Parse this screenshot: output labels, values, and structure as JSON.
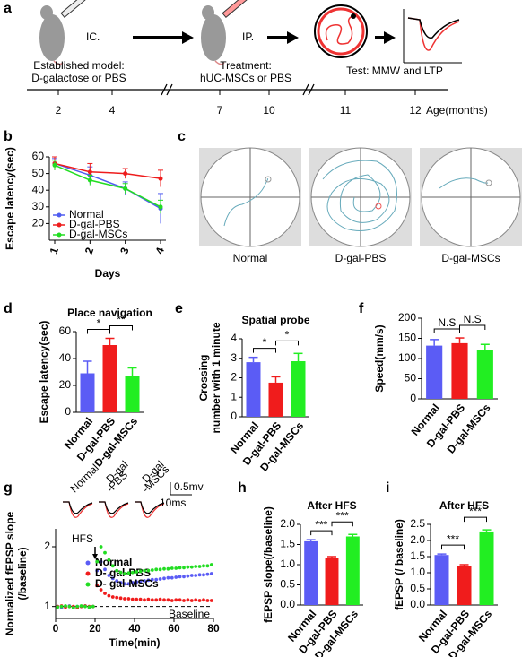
{
  "panel_a": {
    "panel_label": "a",
    "step1_label": "IC.",
    "step2_label": "IP.",
    "step1_text": [
      "Established model:",
      "D-galactose or PBS"
    ],
    "step2_text": [
      "Treatment:",
      "hUC-MSCs or PBS"
    ],
    "step3_text": "Test: MMW and LTP",
    "timeline_ticks": [
      2,
      4,
      7,
      10,
      11,
      12
    ],
    "timeline_unit": "Age(months)"
  },
  "panel_c": {
    "panel_label": "c",
    "labels": [
      "Normal",
      "D-gal-PBS",
      "D-gal-MSCs"
    ]
  },
  "chart_data": [
    {
      "type": "line",
      "panel_label": "b",
      "ylabel": "Escape latency(sec)",
      "xlabel": "Days",
      "categories": [
        "1",
        "2",
        "3",
        "4"
      ],
      "ylim": [
        10,
        60
      ],
      "yticks": [
        20,
        30,
        40,
        50,
        60
      ],
      "series": [
        {
          "name": "Normal",
          "color": "#4f5cf0",
          "values": [
            56,
            49,
            41,
            29
          ],
          "errors": [
            3,
            5,
            4,
            9
          ]
        },
        {
          "name": "D-gal-PBS",
          "color": "#ee1c1c",
          "values": [
            56,
            51,
            50,
            47
          ],
          "errors": [
            4,
            5,
            3,
            5
          ]
        },
        {
          "name": "D-gal-MSCs",
          "color": "#22dd22",
          "values": [
            55,
            46,
            41,
            30
          ],
          "errors": [
            3,
            3,
            3,
            4
          ]
        }
      ]
    },
    {
      "type": "bar",
      "panel_label": "d",
      "title": "Place navigation",
      "ylabel": "Escape latency(sec)",
      "categories": [
        "Normal",
        "D-gal-PBS",
        "D-gal-MSCs"
      ],
      "values": [
        29,
        50,
        27
      ],
      "errors": [
        9,
        5,
        6
      ],
      "colors": [
        "#5b5cf5",
        "#f01c1c",
        "#22ee22"
      ],
      "ylim": [
        0,
        60
      ],
      "yticks": [
        0,
        20,
        40,
        60
      ],
      "annotations": [
        "*",
        "**"
      ]
    },
    {
      "type": "bar",
      "panel_label": "e",
      "title": "Spatial probe",
      "ylabel": [
        "Crossing",
        "number with 1 minute"
      ],
      "categories": [
        "Normal",
        "D-gal-PBS",
        "D-gal-MSCs"
      ],
      "values": [
        2.8,
        1.75,
        2.85
      ],
      "errors": [
        0.25,
        0.3,
        0.4
      ],
      "colors": [
        "#5b5cf5",
        "#f01c1c",
        "#22ee22"
      ],
      "ylim": [
        0,
        4
      ],
      "yticks": [
        0,
        1,
        2,
        3,
        4
      ],
      "annotations": [
        "*",
        "*"
      ]
    },
    {
      "type": "bar",
      "panel_label": "f",
      "ylabel": "Speed(mm/s)",
      "categories": [
        "Normal",
        "D-gal-PBS",
        "D-gal-MSCs"
      ],
      "values": [
        132,
        138,
        122
      ],
      "errors": [
        15,
        13,
        13
      ],
      "colors": [
        "#5b5cf5",
        "#f01c1c",
        "#22ee22"
      ],
      "ylim": [
        0,
        200
      ],
      "yticks": [
        0,
        50,
        100,
        150,
        200
      ],
      "annotations": [
        "N.S",
        "N.S"
      ]
    },
    {
      "type": "scatter",
      "panel_label": "g",
      "ylabel": [
        "Normalized fEPSP slope",
        "(/baseline)"
      ],
      "xlabel": "Time(min)",
      "xlim": [
        0,
        80
      ],
      "xticks": [
        0,
        20,
        40,
        60,
        80
      ],
      "ylim": [
        0.8,
        2.3
      ],
      "yticks": [
        1,
        2
      ],
      "baseline": 1,
      "baseline_label": "Baseline",
      "hfs": {
        "label": "HFS",
        "x": 20
      },
      "trace_labels": [
        [
          "Normal"
        ],
        [
          "D-gal",
          "-PBS"
        ],
        [
          "D-gal",
          "-MSCs"
        ]
      ],
      "scale_bar": [
        "0.5mv",
        "10ms"
      ],
      "x": [
        1,
        3,
        5,
        7,
        9,
        11,
        13,
        15,
        17,
        19,
        21,
        23,
        25,
        27,
        29,
        31,
        33,
        35,
        37,
        39,
        41,
        43,
        45,
        47,
        49,
        51,
        53,
        55,
        57,
        59,
        61,
        63,
        65,
        67,
        69,
        71,
        73,
        75,
        77,
        79
      ],
      "series": [
        {
          "name": "Normal",
          "color": "#5b5cf5",
          "values": [
            1.0,
            0.98,
            1.0,
            1.01,
            0.99,
            1.0,
            1.0,
            1.01,
            0.99,
            1.0,
            1.6,
            1.75,
            1.62,
            1.52,
            1.47,
            1.43,
            1.4,
            1.38,
            1.38,
            1.4,
            1.41,
            1.42,
            1.43,
            1.44,
            1.45,
            1.45,
            1.46,
            1.47,
            1.48,
            1.48,
            1.49,
            1.5,
            1.5,
            1.51,
            1.52,
            1.52,
            1.53,
            1.53,
            1.54,
            1.55
          ]
        },
        {
          "name": "D- gal-PBS",
          "color": "#f01c1c",
          "values": [
            1.0,
            1.01,
            0.99,
            1.0,
            1.0,
            0.98,
            1.0,
            1.01,
            1.0,
            1.0,
            1.35,
            1.28,
            1.22,
            1.18,
            1.16,
            1.15,
            1.14,
            1.13,
            1.13,
            1.12,
            1.12,
            1.12,
            1.11,
            1.12,
            1.11,
            1.11,
            1.12,
            1.11,
            1.11,
            1.1,
            1.11,
            1.11,
            1.1,
            1.11,
            1.1,
            1.11,
            1.1,
            1.11,
            1.1,
            1.1
          ]
        },
        {
          "name": "D- gal-MSCs",
          "color": "#22dd22",
          "values": [
            0.99,
            1.0,
            1.01,
            1.0,
            0.98,
            1.0,
            1.01,
            1.0,
            0.99,
            1.0,
            1.75,
            2.0,
            1.9,
            1.78,
            1.68,
            1.6,
            1.57,
            1.55,
            1.56,
            1.57,
            1.58,
            1.59,
            1.6,
            1.6,
            1.61,
            1.62,
            1.62,
            1.63,
            1.63,
            1.64,
            1.64,
            1.65,
            1.65,
            1.66,
            1.66,
            1.67,
            1.67,
            1.68,
            1.68,
            1.7
          ]
        }
      ]
    },
    {
      "type": "bar",
      "panel_label": "h",
      "title": "After HFS",
      "ylabel": "fEPSP slope(/baseline)",
      "categories": [
        "Normal",
        "D-gal-PBS",
        "D-gal-MSCs"
      ],
      "values": [
        1.58,
        1.17,
        1.7
      ],
      "errors": [
        0.04,
        0.03,
        0.05
      ],
      "colors": [
        "#5b5cf5",
        "#f01c1c",
        "#22ee22"
      ],
      "ylim": [
        0,
        2
      ],
      "yticks": [
        {
          "value": 0,
          "label": "0.0"
        },
        0.5,
        {
          "value": 1,
          "label": "1.0"
        },
        1.5,
        {
          "value": 2,
          "label": "2.0"
        }
      ],
      "annotations": [
        "***",
        "***"
      ]
    },
    {
      "type": "bar",
      "panel_label": "i",
      "title": "After HFS",
      "ylabel": "fEPSP (/ baseline)",
      "categories": [
        "Normal",
        "D-gal-PBS",
        "D-gal-MSCs"
      ],
      "values": [
        1.55,
        1.22,
        2.28
      ],
      "errors": [
        0.03,
        0.03,
        0.05
      ],
      "colors": [
        "#5b5cf5",
        "#f01c1c",
        "#22ee22"
      ],
      "ylim": [
        0,
        2.5
      ],
      "yticks": [
        {
          "value": 0,
          "label": "0.0"
        },
        0.5,
        {
          "value": 1,
          "label": "1.0"
        },
        1.5,
        {
          "value": 2,
          "label": "2.0"
        },
        2.5
      ],
      "annotations": [
        "***",
        "***"
      ]
    }
  ]
}
